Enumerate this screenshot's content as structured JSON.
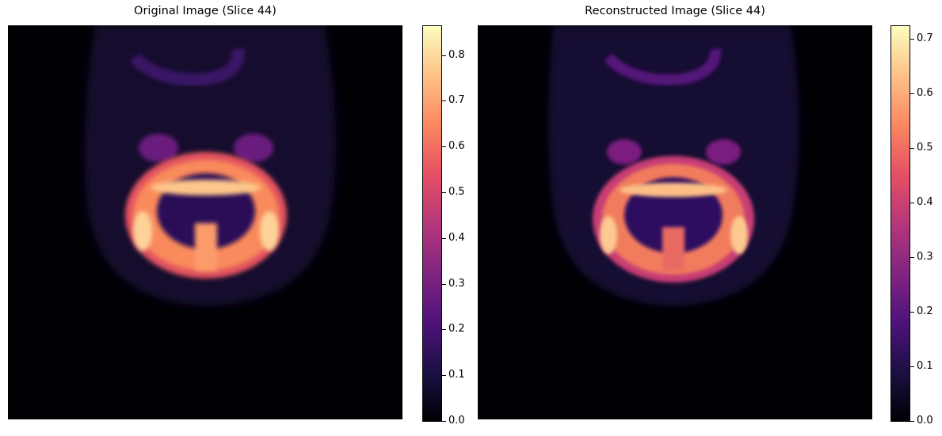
{
  "panels": [
    {
      "title": "Original Image (Slice 44)",
      "colorbar": {
        "min": 0.0,
        "max": 0.865,
        "ticks": [
          "0.0",
          "0.1",
          "0.2",
          "0.3",
          "0.4",
          "0.5",
          "0.6",
          "0.7",
          "0.8"
        ]
      }
    },
    {
      "title": "Reconstructed Image (Slice 44)",
      "colorbar": {
        "min": 0.0,
        "max": 0.725,
        "ticks": [
          "0.0",
          "0.1",
          "0.2",
          "0.3",
          "0.4",
          "0.5",
          "0.6",
          "0.7"
        ]
      }
    }
  ],
  "colormap": {
    "name": "magma",
    "stops": [
      "#000004",
      "#1c1044",
      "#4f127b",
      "#812581",
      "#b5367a",
      "#e55064",
      "#fb8761",
      "#fec287",
      "#fcfdbf"
    ]
  }
}
